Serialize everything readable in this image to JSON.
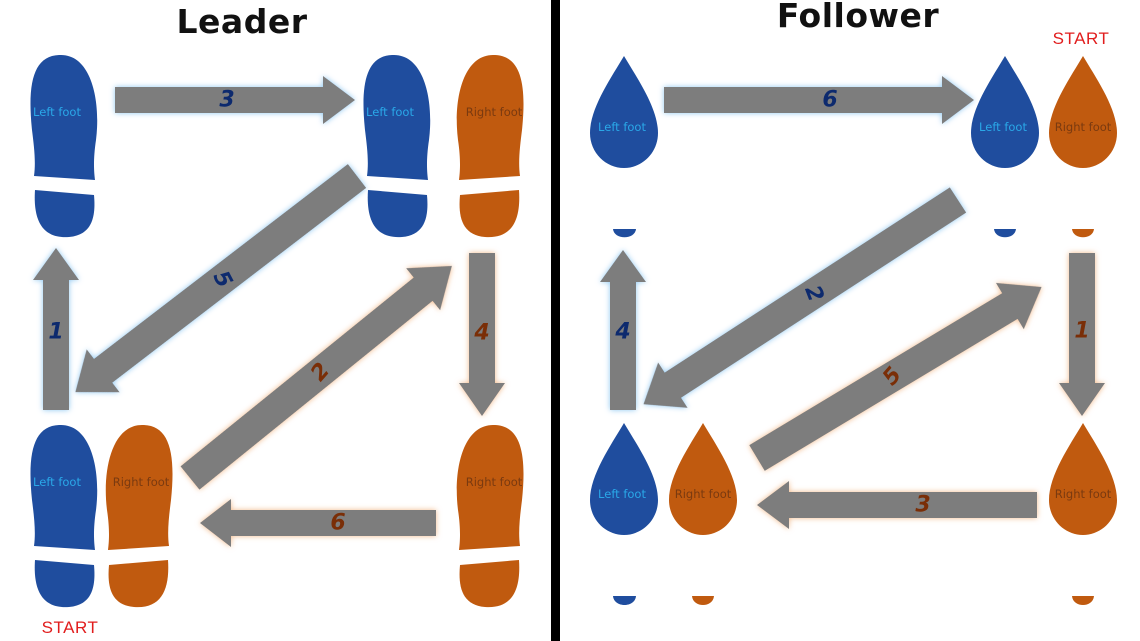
{
  "colors": {
    "left_foot": "#1f4d9e",
    "right_foot": "#c05a0f",
    "left_label": "#2aa8e8",
    "right_label": "#7a3a10",
    "left_num": "#0d2a6e",
    "right_num": "#7a2e07",
    "arrow": "#7d7d7d",
    "start": "#e11d1d",
    "divider": "#000000"
  },
  "leader": {
    "title": "Leader",
    "start_label": "START",
    "foot_labels": {
      "top_left": "Left foot",
      "top_mid": "Left foot",
      "top_right": "Right foot",
      "bottom_left": "Left foot",
      "bottom_mid": "Right foot",
      "bottom_right": "Right foot"
    },
    "steps": [
      {
        "number": "1",
        "foot": "left"
      },
      {
        "number": "2",
        "foot": "right"
      },
      {
        "number": "3",
        "foot": "left"
      },
      {
        "number": "4",
        "foot": "right"
      },
      {
        "number": "5",
        "foot": "left"
      },
      {
        "number": "6",
        "foot": "right"
      }
    ]
  },
  "follower": {
    "title": "Follower",
    "start_label": "START",
    "foot_labels": {
      "top_left": "Left foot",
      "top_mid": "Left foot",
      "top_right": "Right foot",
      "bottom_left": "Left foot",
      "bottom_mid": "Right foot",
      "bottom_right": "Right foot"
    },
    "steps": [
      {
        "number": "1",
        "foot": "right"
      },
      {
        "number": "2",
        "foot": "left"
      },
      {
        "number": "3",
        "foot": "right"
      },
      {
        "number": "4",
        "foot": "left"
      },
      {
        "number": "5",
        "foot": "right"
      },
      {
        "number": "6",
        "foot": "left"
      }
    ]
  }
}
